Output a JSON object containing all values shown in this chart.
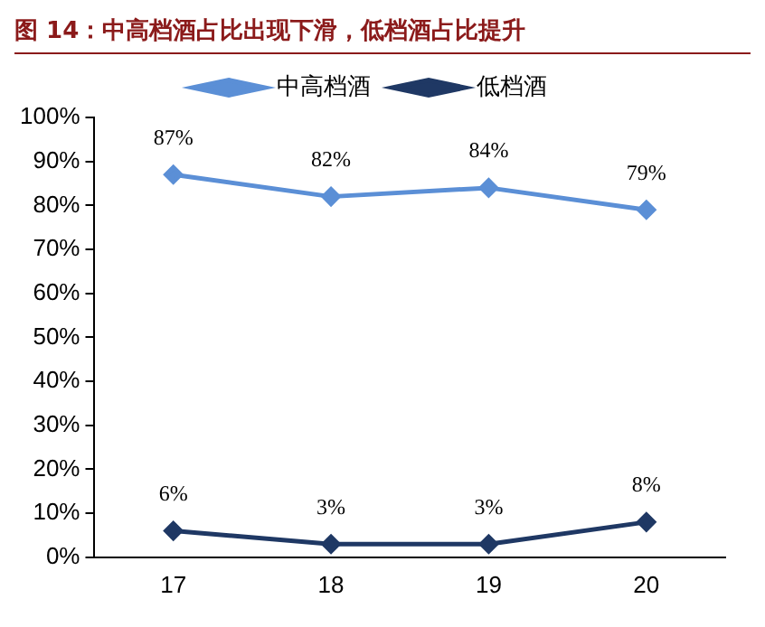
{
  "chart_data": {
    "type": "line",
    "title": "图 14：中高档酒占比出现下滑，低档酒占比提升",
    "categories": [
      "17",
      "18",
      "19",
      "20"
    ],
    "series": [
      {
        "name": "中高档酒",
        "color": "#5b8fd6",
        "values": [
          87,
          82,
          84,
          79
        ],
        "value_labels": [
          "87%",
          "82%",
          "84%",
          "79%"
        ]
      },
      {
        "name": "低档酒",
        "color": "#1f3864",
        "values": [
          6,
          3,
          3,
          8
        ],
        "value_labels": [
          "6%",
          "3%",
          "3%",
          "8%"
        ]
      }
    ],
    "ylim": [
      0,
      100
    ],
    "yticks": [
      {
        "value": 0,
        "label": "0%"
      },
      {
        "value": 10,
        "label": "10%"
      },
      {
        "value": 20,
        "label": "20%"
      },
      {
        "value": 30,
        "label": "30%"
      },
      {
        "value": 40,
        "label": "40%"
      },
      {
        "value": 50,
        "label": "50%"
      },
      {
        "value": 60,
        "label": "60%"
      },
      {
        "value": 70,
        "label": "70%"
      },
      {
        "value": 80,
        "label": "80%"
      },
      {
        "value": 90,
        "label": "90%"
      },
      {
        "value": 100,
        "label": "100%"
      }
    ],
    "grid": false,
    "legend": "top",
    "marker": "diamond",
    "line_style": "solid"
  }
}
